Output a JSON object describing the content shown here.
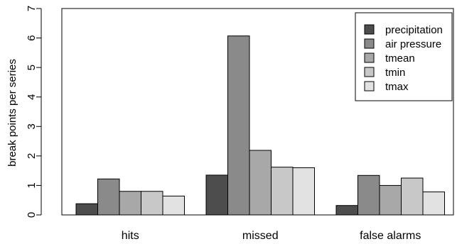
{
  "chart_data": {
    "type": "bar",
    "categories": [
      "hits",
      "missed",
      "false alarms"
    ],
    "series": [
      {
        "name": "precipitation",
        "color": "#4d4d4d",
        "values": [
          0.38,
          1.35,
          0.32
        ]
      },
      {
        "name": "air pressure",
        "color": "#8a8a8a",
        "values": [
          1.22,
          6.07,
          1.34
        ]
      },
      {
        "name": "tmean",
        "color": "#a8a8a8",
        "values": [
          0.8,
          2.19,
          1.0
        ]
      },
      {
        "name": "tmin",
        "color": "#c8c8c8",
        "values": [
          0.8,
          1.62,
          1.25
        ]
      },
      {
        "name": "tmax",
        "color": "#e2e2e2",
        "values": [
          0.64,
          1.6,
          0.78
        ]
      }
    ],
    "xlabel": "",
    "ylabel": "break points per series",
    "ylim": [
      0,
      7
    ],
    "yticks": [
      0,
      1,
      2,
      3,
      4,
      5,
      6,
      7
    ],
    "grid": false,
    "legend_position": "top-right"
  }
}
